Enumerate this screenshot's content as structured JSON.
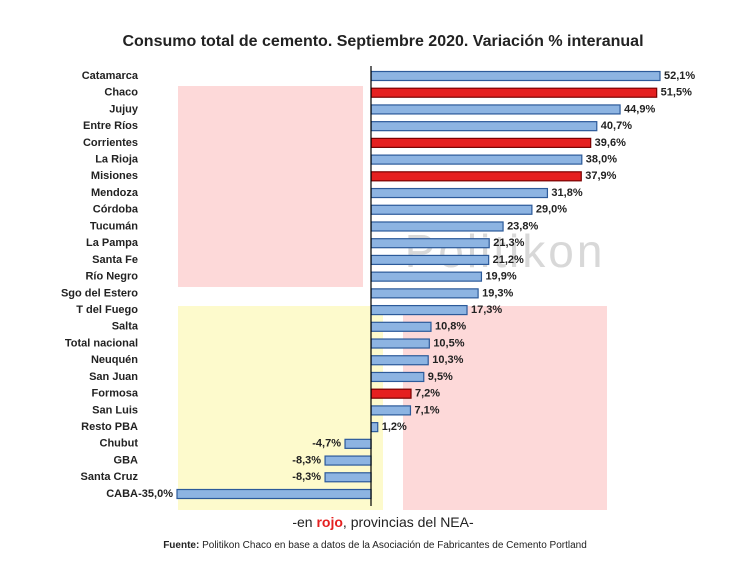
{
  "chart_data": {
    "type": "bar",
    "orientation": "horizontal",
    "title": "Consumo total de cemento. Septiembre 2020. Variación % interanual",
    "watermark": "Politikon",
    "categories": [
      "Catamarca",
      "Chaco",
      "Jujuy",
      "Entre Ríos",
      "Corrientes",
      "La Rioja",
      "Misiones",
      "Mendoza",
      "Córdoba",
      "Tucumán",
      "La Pampa",
      "Santa Fe",
      "Río Negro",
      "Sgo del Estero",
      "T del Fuego",
      "Salta",
      "Total nacional",
      "Neuquén",
      "San Juan",
      "Formosa",
      "San Luis",
      "Resto PBA",
      "Chubut",
      "GBA",
      "Santa Cruz",
      "CABA"
    ],
    "values": [
      52.1,
      51.5,
      44.9,
      40.7,
      39.6,
      38.0,
      37.9,
      31.8,
      29.0,
      23.8,
      21.3,
      21.2,
      19.9,
      19.3,
      17.3,
      10.8,
      10.5,
      10.3,
      9.5,
      7.2,
      7.1,
      1.2,
      -4.7,
      -8.3,
      -8.3,
      -35.0
    ],
    "value_labels": [
      "52,1%",
      "51,5%",
      "44,9%",
      "40,7%",
      "39,6%",
      "38,0%",
      "37,9%",
      "31,8%",
      "29,0%",
      "23,8%",
      "21,3%",
      "21,2%",
      "19,9%",
      "19,3%",
      "17,3%",
      "10,8%",
      "10,5%",
      "10,3%",
      "9,5%",
      "7,2%",
      "7,1%",
      "1,2%",
      "-4,7%",
      "-8,3%",
      "-8,3%",
      "-35,0%"
    ],
    "colors": [
      "#8db4e2",
      "#e52020",
      "#8db4e2",
      "#8db4e2",
      "#e52020",
      "#8db4e2",
      "#e52020",
      "#8db4e2",
      "#8db4e2",
      "#8db4e2",
      "#8db4e2",
      "#8db4e2",
      "#8db4e2",
      "#8db4e2",
      "#8db4e2",
      "#8db4e2",
      "#8db4e2",
      "#8db4e2",
      "#8db4e2",
      "#e52020",
      "#8db4e2",
      "#8db4e2",
      "#8db4e2",
      "#8db4e2",
      "#8db4e2",
      "#8db4e2"
    ],
    "xlim": [
      -35.0,
      52.1
    ],
    "note": [
      "-en ",
      "rojo",
      ", provincias del NEA-"
    ],
    "source_label": "Fuente:",
    "source_text": " Politikon Chaco en base a datos de la Asociación de Fabricantes de Cemento Portland"
  }
}
